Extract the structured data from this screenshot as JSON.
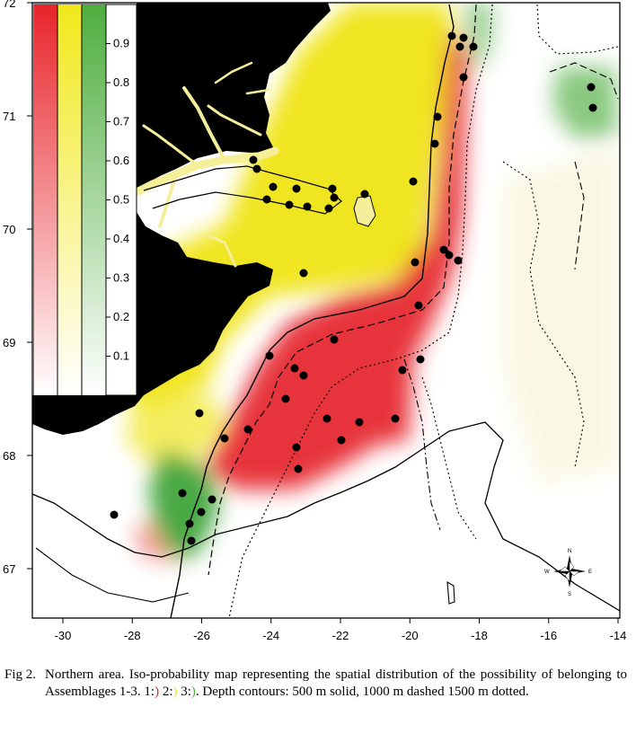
{
  "map": {
    "x_ticks": [
      "-30",
      "-28",
      "-26",
      "-24",
      "-22",
      "-20",
      "-18",
      "-16",
      "-14"
    ],
    "y_ticks": [
      "72",
      "71",
      "70",
      "69",
      "68",
      "67"
    ],
    "legend_ticks": [
      "0.9",
      "0.8",
      "0.7",
      "0.6",
      "0.5",
      "0.4",
      "0.3",
      "0.2",
      "0.1"
    ],
    "legend_colors": [
      "#e8252b",
      "#f2e81a",
      "#4fae3f"
    ],
    "compass": {
      "n": "N",
      "s": "S",
      "e": "E",
      "w": "W"
    }
  },
  "caption": {
    "fig_label": "Fig 2.",
    "text_before": "Northern area. Iso-probability map representing the spatial distribution of the possibility of belonging to Assemblages 1-3. 1:",
    "swatch1": ")",
    "sep1": " 2:",
    "swatch2": ")",
    "sep2": " 3:",
    "swatch3": ")",
    "text_after": ". Depth contours: 500 m solid, 1000 m dashed 1500 m dotted."
  }
}
